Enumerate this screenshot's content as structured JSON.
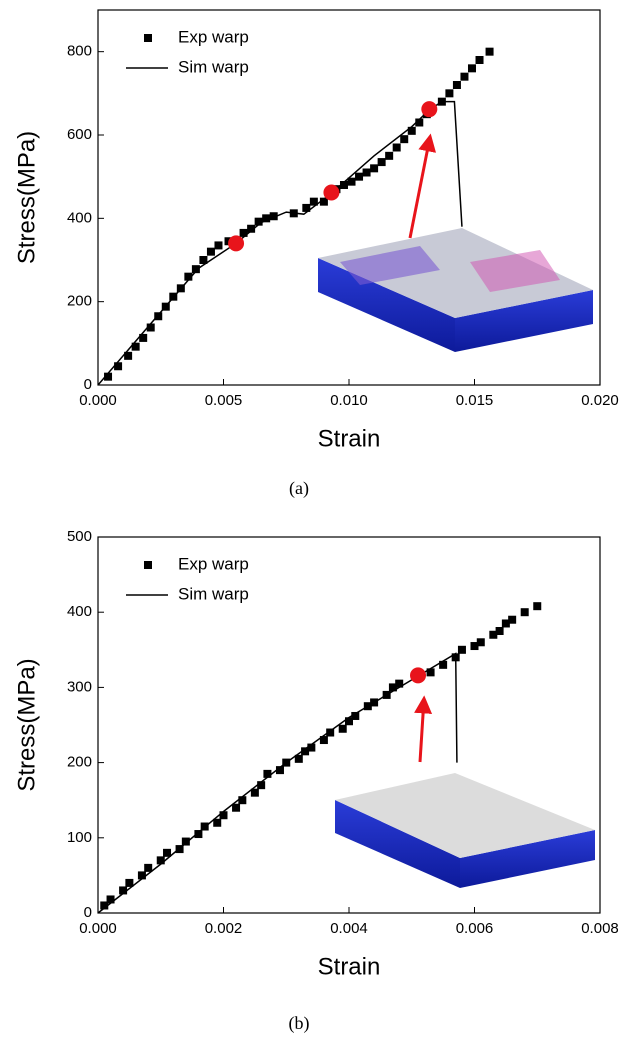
{
  "chart_data": [
    {
      "type": "scatter-line",
      "caption": "(a)",
      "xlabel": "Strain",
      "ylabel": "Stress(MPa)",
      "xlim": [
        0,
        0.02
      ],
      "xticks": [
        {
          "value": 0,
          "label": "0.000"
        },
        {
          "value": 0.005,
          "label": "0.005"
        },
        {
          "value": 0.01,
          "label": "0.010"
        },
        {
          "value": 0.015,
          "label": "0.015"
        },
        {
          "value": 0.02,
          "label": "0.020"
        }
      ],
      "ylim": [
        0,
        900
      ],
      "yticks": [
        0,
        200,
        400,
        600,
        800
      ],
      "series": [
        {
          "name": "Exp warp",
          "color": "#000000",
          "marker": "square",
          "x": [
            0.0004,
            0.0008,
            0.0012,
            0.0015,
            0.0018,
            0.0021,
            0.0024,
            0.0027,
            0.003,
            0.0033,
            0.0036,
            0.0039,
            0.0042,
            0.0045,
            0.0048,
            0.0052,
            0.0058,
            0.0061,
            0.0064,
            0.0067,
            0.007,
            0.0078,
            0.0083,
            0.0086,
            0.009,
            0.0095,
            0.0098,
            0.0101,
            0.0104,
            0.0107,
            0.011,
            0.0113,
            0.0116,
            0.0119,
            0.0122,
            0.0125,
            0.0128,
            0.0131,
            0.0137,
            0.014,
            0.0143,
            0.0146,
            0.0149,
            0.0152,
            0.0156
          ],
          "values": [
            20,
            45,
            70,
            92,
            113,
            138,
            165,
            188,
            212,
            232,
            260,
            278,
            300,
            320,
            335,
            345,
            365,
            375,
            392,
            400,
            405,
            412,
            425,
            440,
            440,
            470,
            480,
            488,
            500,
            510,
            520,
            535,
            550,
            570,
            590,
            610,
            630,
            650,
            680,
            700,
            720,
            740,
            760,
            780,
            800
          ]
        },
        {
          "name": "Sim warp",
          "color": "#000000",
          "marker": "line",
          "x": [
            0,
            0.002,
            0.004,
            0.0055,
            0.0065,
            0.0075,
            0.0082,
            0.0093,
            0.011,
            0.0125,
            0.0132,
            0.0137,
            0.0142,
            0.0145
          ],
          "values": [
            0,
            140,
            280,
            340,
            390,
            415,
            410,
            460,
            550,
            620,
            660,
            680,
            680,
            380
          ]
        }
      ],
      "highlights": {
        "color": "#e8141b",
        "x": [
          0.0055,
          0.0093,
          0.0132
        ],
        "values": [
          340,
          462,
          662
        ]
      }
    },
    {
      "type": "scatter-line",
      "caption": "(b)",
      "xlabel": "Strain",
      "ylabel": "Stress(MPa)",
      "xlim": [
        0,
        0.008
      ],
      "xticks": [
        {
          "value": 0,
          "label": "0.000"
        },
        {
          "value": 0.002,
          "label": "0.002"
        },
        {
          "value": 0.004,
          "label": "0.004"
        },
        {
          "value": 0.006,
          "label": "0.006"
        },
        {
          "value": 0.008,
          "label": "0.008"
        }
      ],
      "ylim": [
        0,
        500
      ],
      "yticks": [
        0,
        100,
        200,
        300,
        400,
        500
      ],
      "series": [
        {
          "name": "Exp warp",
          "color": "#000000",
          "marker": "square",
          "x": [
            0.0001,
            0.0002,
            0.0004,
            0.0005,
            0.0007,
            0.0008,
            0.001,
            0.0011,
            0.0013,
            0.0014,
            0.0016,
            0.0017,
            0.0019,
            0.002,
            0.0022,
            0.0023,
            0.0025,
            0.0026,
            0.0027,
            0.0029,
            0.003,
            0.0032,
            0.0033,
            0.0034,
            0.0036,
            0.0037,
            0.0039,
            0.004,
            0.0041,
            0.0043,
            0.0044,
            0.0046,
            0.0047,
            0.0048,
            0.0053,
            0.0055,
            0.0057,
            0.0058,
            0.006,
            0.0061,
            0.0063,
            0.0064,
            0.0065,
            0.0066,
            0.0068,
            0.007
          ],
          "values": [
            10,
            18,
            30,
            40,
            50,
            60,
            70,
            80,
            85,
            95,
            105,
            115,
            120,
            130,
            140,
            150,
            160,
            170,
            185,
            190,
            200,
            205,
            215,
            220,
            230,
            240,
            245,
            255,
            262,
            275,
            280,
            290,
            300,
            305,
            320,
            330,
            340,
            350,
            355,
            360,
            370,
            375,
            385,
            390,
            400,
            408
          ]
        },
        {
          "name": "Sim warp",
          "color": "#000000",
          "marker": "line",
          "x": [
            0,
            0.001,
            0.002,
            0.003,
            0.004,
            0.005,
            0.0057,
            0.00572
          ],
          "values": [
            0,
            65,
            135,
            200,
            260,
            310,
            345,
            200
          ]
        }
      ],
      "highlights": {
        "color": "#e8141b",
        "x": [
          0.0051
        ],
        "values": [
          316
        ]
      }
    }
  ]
}
